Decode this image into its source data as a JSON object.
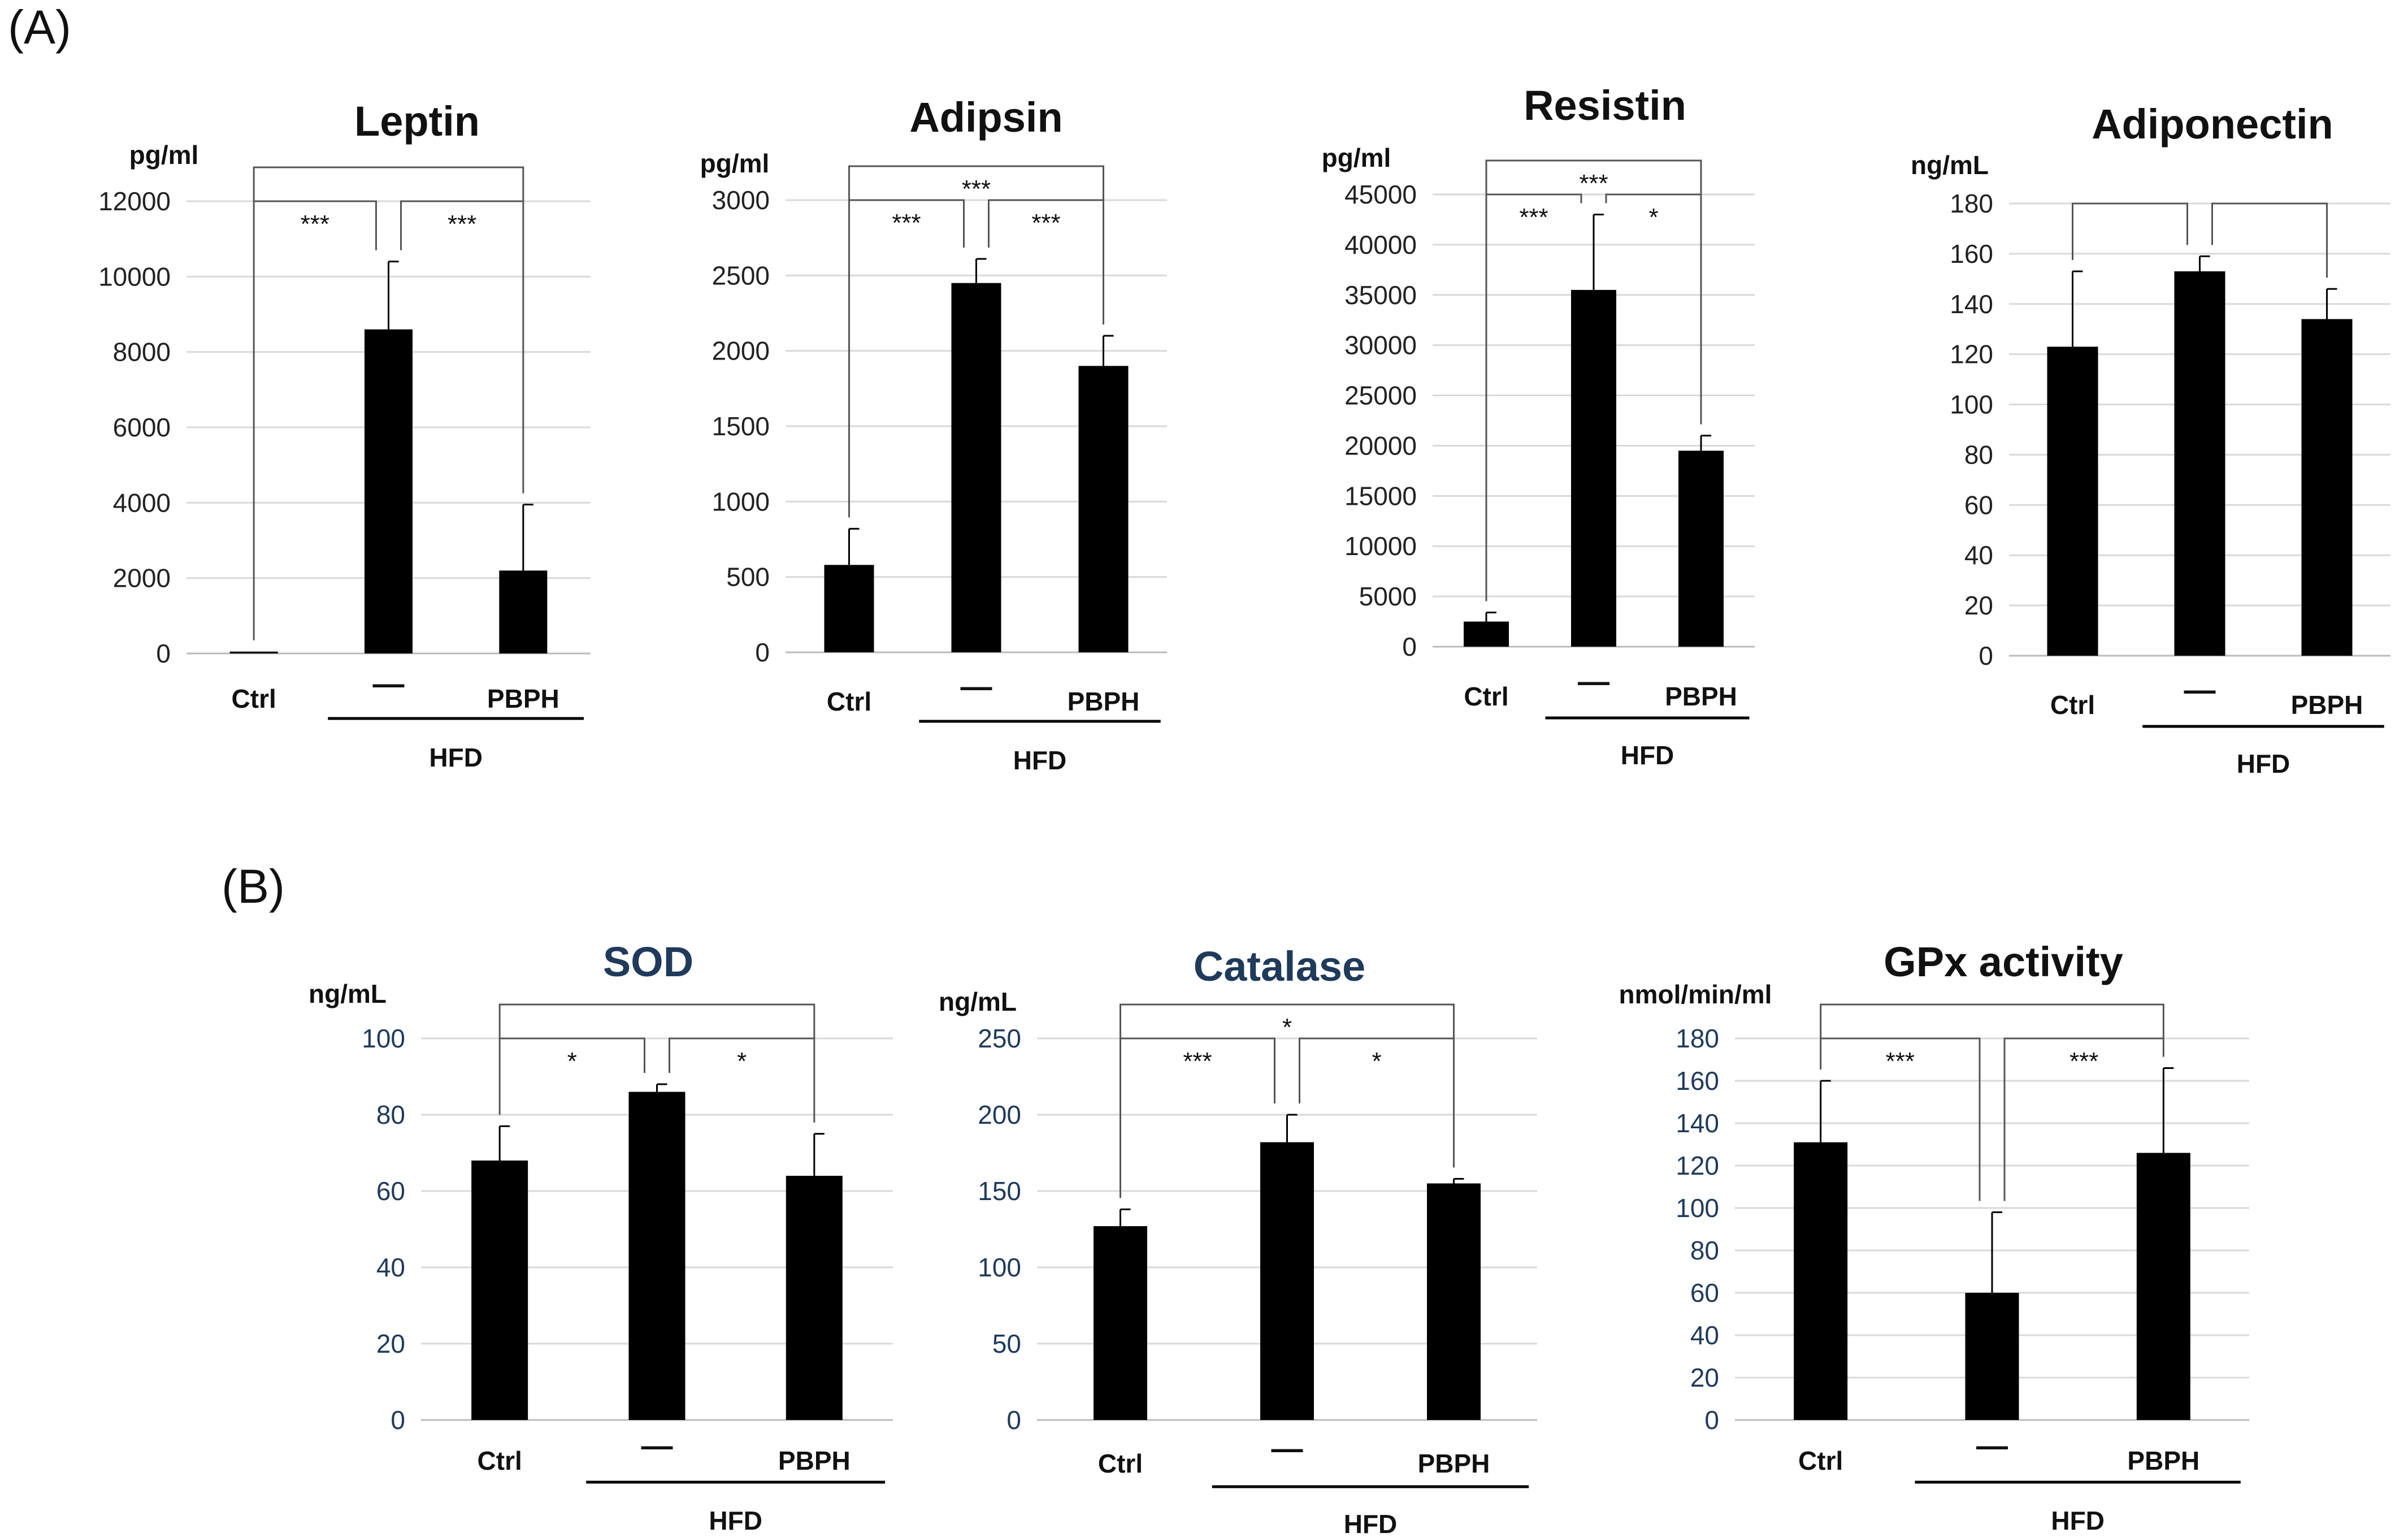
{
  "panel_labels": [
    "(A)",
    "(B)"
  ],
  "chart_data": [
    {
      "type": "bar",
      "panel": "A",
      "title": "Leptin",
      "title_color": "#111111",
      "ylabel": "pg/ml",
      "ylim": [
        0,
        12000
      ],
      "ticks": [
        0,
        2000,
        4000,
        6000,
        8000,
        10000,
        12000
      ],
      "categories": [
        "Ctrl",
        "—",
        "PBPH"
      ],
      "values": [
        50,
        8600,
        2200
      ],
      "errors": [
        0,
        1800,
        1750
      ],
      "group_label": "HFD",
      "significance": [
        {
          "from": 0,
          "to": 2,
          "level": 2,
          "label": ""
        },
        {
          "from": 0,
          "to": 1,
          "level": 1,
          "label": "***"
        },
        {
          "from": 1,
          "to": 2,
          "level": 1,
          "label": "***"
        }
      ]
    },
    {
      "type": "bar",
      "panel": "A",
      "title": "Adipsin",
      "title_color": "#111111",
      "ylabel": "pg/ml",
      "ylim": [
        0,
        3000
      ],
      "ticks": [
        0,
        500,
        1000,
        1500,
        2000,
        2500,
        3000
      ],
      "categories": [
        "Ctrl",
        "—",
        "PBPH"
      ],
      "values": [
        580,
        2450,
        1900
      ],
      "errors": [
        240,
        160,
        200
      ],
      "group_label": "HFD",
      "significance": [
        {
          "from": 0,
          "to": 2,
          "level": 2,
          "label": "***"
        },
        {
          "from": 0,
          "to": 1,
          "level": 1,
          "label": "***"
        },
        {
          "from": 1,
          "to": 2,
          "level": 1,
          "label": "***"
        }
      ]
    },
    {
      "type": "bar",
      "panel": "A",
      "title": "Resistin",
      "title_color": "#111111",
      "ylabel": "pg/ml",
      "ylim": [
        0,
        45000
      ],
      "ticks": [
        0,
        5000,
        10000,
        15000,
        20000,
        25000,
        30000,
        35000,
        40000,
        45000
      ],
      "categories": [
        "Ctrl",
        "—",
        "PBPH"
      ],
      "values": [
        2500,
        35500,
        19500
      ],
      "errors": [
        900,
        7500,
        1500
      ],
      "group_label": "HFD",
      "significance": [
        {
          "from": 0,
          "to": 2,
          "level": 2,
          "label": "***"
        },
        {
          "from": 0,
          "to": 1,
          "level": 1,
          "label": "***"
        },
        {
          "from": 1,
          "to": 2,
          "level": 1,
          "label": "*"
        }
      ]
    },
    {
      "type": "bar",
      "panel": "A",
      "title": "Adiponectin",
      "title_color": "#111111",
      "ylabel": "ng/mL",
      "ylim": [
        0,
        180
      ],
      "ticks": [
        0,
        20,
        40,
        60,
        80,
        100,
        120,
        140,
        160,
        180
      ],
      "categories": [
        "Ctrl",
        "—",
        "PBPH"
      ],
      "values": [
        123,
        153,
        134
      ],
      "errors": [
        30,
        6,
        12
      ],
      "group_label": "HFD",
      "significance": [
        {
          "from": 0,
          "to": 1,
          "level": 1,
          "label": ""
        },
        {
          "from": 1,
          "to": 2,
          "level": 1,
          "label": ""
        }
      ]
    },
    {
      "type": "bar",
      "panel": "B",
      "title": "SOD",
      "title_color": "#1f3a5a",
      "ylabel": "ng/mL",
      "ylim": [
        0,
        100
      ],
      "ticks": [
        0,
        20,
        40,
        60,
        80,
        100
      ],
      "categories": [
        "Ctrl",
        "—",
        "PBPH"
      ],
      "values": [
        68,
        86,
        64
      ],
      "errors": [
        9,
        2,
        11
      ],
      "group_label": "HFD",
      "significance": [
        {
          "from": 0,
          "to": 2,
          "level": 2,
          "label": ""
        },
        {
          "from": 0,
          "to": 1,
          "level": 1,
          "label": "*"
        },
        {
          "from": 1,
          "to": 2,
          "level": 1,
          "label": "*"
        }
      ]
    },
    {
      "type": "bar",
      "panel": "B",
      "title": "Catalase",
      "title_color": "#1f3a5a",
      "ylabel": "ng/mL",
      "ylim": [
        0,
        250
      ],
      "ticks": [
        0,
        50,
        100,
        150,
        200,
        250
      ],
      "categories": [
        "Ctrl",
        "—",
        "PBPH"
      ],
      "values": [
        127,
        182,
        155
      ],
      "errors": [
        11,
        18,
        3
      ],
      "group_label": "HFD",
      "significance": [
        {
          "from": 0,
          "to": 2,
          "level": 2,
          "label": "*"
        },
        {
          "from": 0,
          "to": 1,
          "level": 1,
          "label": "***"
        },
        {
          "from": 1,
          "to": 2,
          "level": 1,
          "label": "*"
        }
      ]
    },
    {
      "type": "bar",
      "panel": "B",
      "title": "GPx activity",
      "title_color": "#111111",
      "ylabel": "nmol/min/ml",
      "ylim": [
        0,
        180
      ],
      "ticks": [
        0,
        20,
        40,
        60,
        80,
        100,
        120,
        140,
        160,
        180
      ],
      "categories": [
        "Ctrl",
        "—",
        "PBPH"
      ],
      "values": [
        131,
        60,
        126
      ],
      "errors": [
        29,
        38,
        40
      ],
      "group_label": "HFD",
      "significance": [
        {
          "from": 0,
          "to": 2,
          "level": 2,
          "label": ""
        },
        {
          "from": 0,
          "to": 1,
          "level": 1,
          "label": "***"
        },
        {
          "from": 1,
          "to": 2,
          "level": 1,
          "label": "***"
        }
      ]
    }
  ]
}
